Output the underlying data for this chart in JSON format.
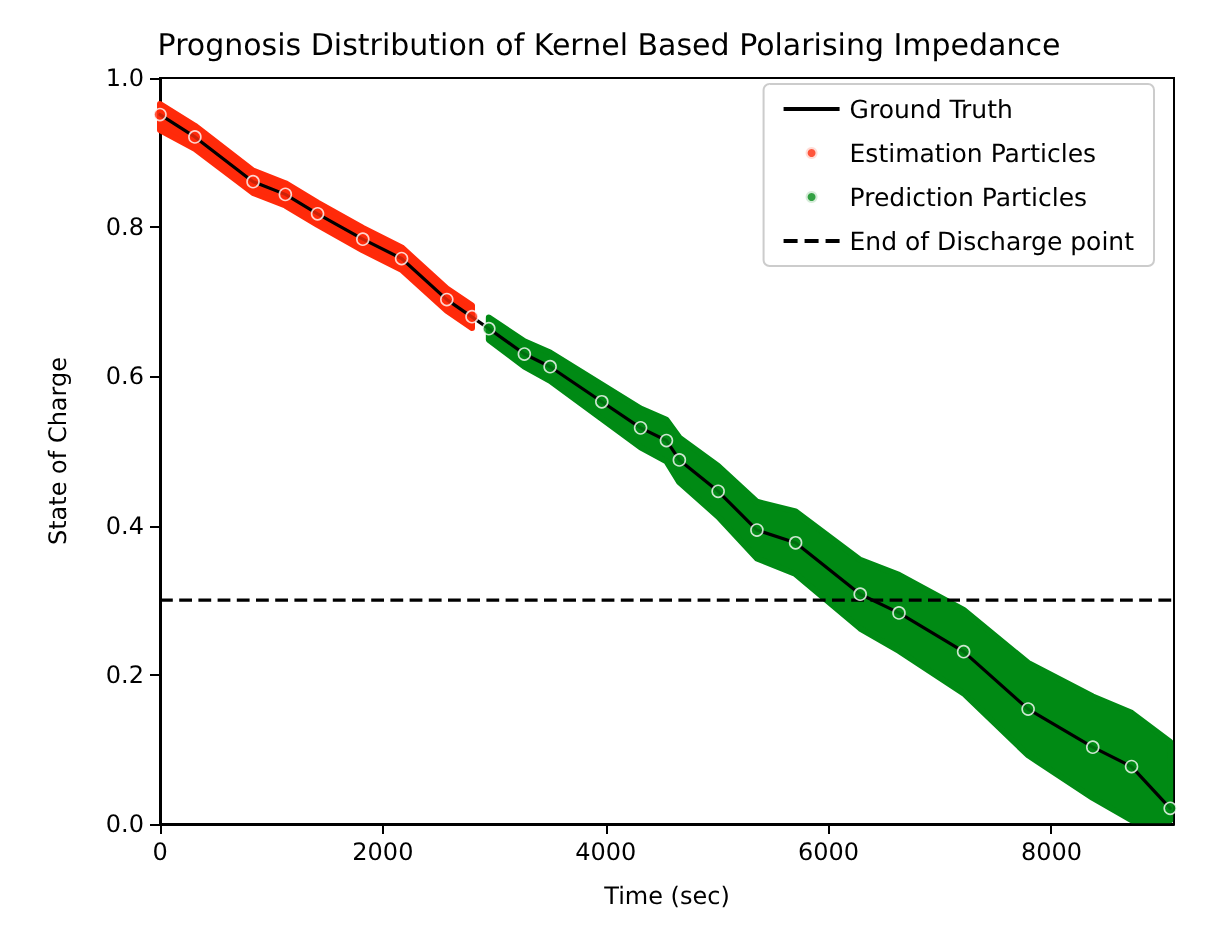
{
  "chart_data": {
    "type": "line",
    "title": "Prognosis Distribution of Kernel Based Polarising Impedance",
    "xlabel": "Time (sec)",
    "ylabel": "State of Charge",
    "xlim": [
      0,
      9100
    ],
    "ylim": [
      0,
      1
    ],
    "xticks": [
      0,
      2000,
      4000,
      6000,
      8000
    ],
    "yticks": [
      {
        "value": 0,
        "label": "0.0"
      },
      {
        "value": 0.2,
        "label": "0.2"
      },
      {
        "value": 0.4,
        "label": "0.4"
      },
      {
        "value": 0.6,
        "label": "0.6"
      },
      {
        "value": 0.8,
        "label": "0.8"
      },
      {
        "value": 1,
        "label": "1.0"
      }
    ],
    "grid": false,
    "legend": "top right",
    "series": [
      {
        "name": "Ground Truth",
        "color": "#000000",
        "marker": "none",
        "line_style": "solid",
        "x": [
          0,
          313,
          835,
          1125,
          1414,
          1820,
          2168,
          2574,
          2951,
          3270,
          3501,
          3965,
          4313,
          4545,
          4661,
          5009,
          5357,
          5704,
          6284,
          6632,
          7212,
          7791,
          8371,
          8719,
          9066
        ],
        "values": [
          0.951,
          0.921,
          0.861,
          0.844,
          0.818,
          0.784,
          0.758,
          0.703,
          0.664,
          0.63,
          0.613,
          0.566,
          0.531,
          0.514,
          0.488,
          0.446,
          0.394,
          0.377,
          0.308,
          0.283,
          0.231,
          0.154,
          0.103,
          0.077,
          0.021
        ]
      },
      {
        "name": "Estimation Particles",
        "type": "scatter",
        "color": "#ff2a0a",
        "marker": "circle",
        "x": [
          0,
          313,
          835,
          1125,
          1414,
          1820,
          2168,
          2574,
          2800
        ],
        "values": [
          0.951,
          0.921,
          0.861,
          0.844,
          0.818,
          0.784,
          0.758,
          0.703,
          0.68
        ],
        "lower": [
          0.93,
          0.905,
          0.846,
          0.829,
          0.803,
          0.769,
          0.743,
          0.688,
          0.665
        ],
        "upper": [
          0.965,
          0.936,
          0.876,
          0.859,
          0.833,
          0.799,
          0.773,
          0.718,
          0.695
        ]
      },
      {
        "name": "Prediction Particles",
        "type": "scatter",
        "color": "#008a14",
        "marker": "circle",
        "x": [
          2951,
          3270,
          3501,
          3965,
          4313,
          4545,
          4661,
          5009,
          5357,
          5704,
          6284,
          6632,
          7212,
          7791,
          8371,
          8719,
          9066
        ],
        "values": [
          0.664,
          0.63,
          0.613,
          0.566,
          0.531,
          0.514,
          0.488,
          0.446,
          0.394,
          0.377,
          0.308,
          0.283,
          0.231,
          0.154,
          0.103,
          0.077,
          0.021
        ],
        "lower": [
          0.649,
          0.613,
          0.594,
          0.543,
          0.505,
          0.486,
          0.458,
          0.412,
          0.356,
          0.335,
          0.262,
          0.232,
          0.175,
          0.092,
          0.035,
          0.005,
          0.005
        ],
        "upper": [
          0.679,
          0.647,
          0.632,
          0.589,
          0.557,
          0.542,
          0.518,
          0.48,
          0.432,
          0.419,
          0.354,
          0.334,
          0.287,
          0.216,
          0.171,
          0.149,
          0.11
        ]
      }
    ],
    "ref_lines": [
      {
        "axis": "y",
        "value": 0.3,
        "label": "End of Discharge point",
        "color": "#000000",
        "line_style": "dashed"
      }
    ]
  }
}
